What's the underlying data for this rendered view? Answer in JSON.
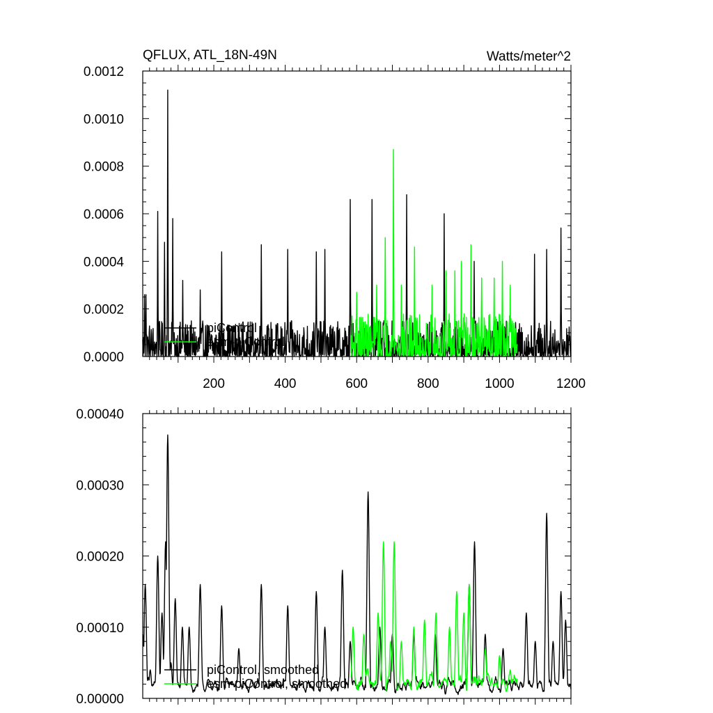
{
  "chart_data": [
    {
      "type": "line",
      "title_left": "QFLUX, ATL_18N-49N",
      "title_right": "Watts/meter^2",
      "xlim": [
        1,
        1200
      ],
      "ylim": [
        0,
        0.0012
      ],
      "xticks": [
        200,
        400,
        600,
        800,
        1000,
        1200
      ],
      "yticks": [
        0,
        0.0002,
        0.0004,
        0.0006,
        0.0008,
        0.001,
        0.0012
      ],
      "ytick_labels": [
        "0.0000",
        "0.0002",
        "0.0004",
        "0.0006",
        "0.0008",
        "0.0010",
        "0.0012"
      ],
      "grid": false,
      "legend_position": "bottom-left",
      "series": [
        {
          "name": "piControl",
          "color": "#000000",
          "x_start": 1,
          "x_end": 1200,
          "peaks": [
            [
              6,
              0.00026
            ],
            [
              10,
              0.00026
            ],
            [
              43,
              0.00061
            ],
            [
              62,
              0.00048
            ],
            [
              71,
              0.00112
            ],
            [
              85,
              0.00058
            ],
            [
              113,
              0.00032
            ],
            [
              162,
              0.00028
            ],
            [
              222,
              0.00044
            ],
            [
              333,
              0.00047
            ],
            [
              407,
              0.00045
            ],
            [
              487,
              0.00044
            ],
            [
              511,
              0.00045
            ],
            [
              582,
              0.00066
            ],
            [
              643,
              0.00066
            ],
            [
              740,
              0.00068
            ],
            [
              845,
              0.0006
            ],
            [
              929,
              0.0004
            ],
            [
              1098,
              0.00043
            ],
            [
              1132,
              0.00045
            ],
            [
              1172,
              0.00054
            ],
            [
              1197,
              8e-05
            ]
          ],
          "baseline_max": 0.00015
        },
        {
          "name": "esm-piControl",
          "color": "#00ff00",
          "x_start": 585,
          "x_end": 1050,
          "peaks": [
            [
              600,
              0.00027
            ],
            [
              656,
              0.0003
            ],
            [
              680,
              0.0005
            ],
            [
              703,
              0.00087
            ],
            [
              725,
              0.0003
            ],
            [
              762,
              0.00046
            ],
            [
              811,
              0.0003
            ],
            [
              850,
              0.00036
            ],
            [
              875,
              0.00036
            ],
            [
              893,
              0.0004
            ],
            [
              920,
              0.00047
            ],
            [
              950,
              0.00033
            ],
            [
              985,
              0.00033
            ],
            [
              1008,
              0.0004
            ],
            [
              1030,
              0.0003
            ]
          ],
          "baseline_max": 0.00018
        }
      ]
    },
    {
      "type": "line",
      "xlim": [
        1,
        1200
      ],
      "ylim": [
        0,
        0.0004
      ],
      "xticks": [
        200,
        400,
        600,
        800,
        1000,
        1200
      ],
      "yticks": [
        0,
        0.0001,
        0.0002,
        0.0003,
        0.0004
      ],
      "ytick_labels": [
        "0.00000",
        "0.00010",
        "0.00020",
        "0.00030",
        "0.00040"
      ],
      "grid": false,
      "legend_position": "bottom-left",
      "series": [
        {
          "name": "piControl, smoothed",
          "color": "#000000",
          "x_start": 1,
          "x_end": 1200,
          "peaks": [
            [
              1,
              9e-05
            ],
            [
              8,
              0.00016
            ],
            [
              22,
              4e-05
            ],
            [
              43,
              0.0002
            ],
            [
              55,
              0.00012
            ],
            [
              65,
              0.00022
            ],
            [
              71,
              0.00037
            ],
            [
              80,
              5e-05
            ],
            [
              92,
              0.00014
            ],
            [
              112,
              0.0001
            ],
            [
              131,
              0.0001
            ],
            [
              162,
              0.00016
            ],
            [
              222,
              0.00013
            ],
            [
              270,
              7e-05
            ],
            [
              333,
              0.00016
            ],
            [
              407,
              0.00013
            ],
            [
              487,
              0.00015
            ],
            [
              511,
              0.0001
            ],
            [
              560,
              0.00018
            ],
            [
              582,
              8e-05
            ],
            [
              632,
              0.00029
            ],
            [
              665,
              0.0001
            ],
            [
              700,
              9e-05
            ],
            [
              760,
              9e-05
            ],
            [
              820,
              9e-05
            ],
            [
              915,
              0.00016
            ],
            [
              930,
              0.00022
            ],
            [
              960,
              9e-05
            ],
            [
              1010,
              7e-05
            ],
            [
              1075,
              0.00012
            ],
            [
              1100,
              8e-05
            ],
            [
              1132,
              0.00026
            ],
            [
              1150,
              8e-05
            ],
            [
              1172,
              0.00015
            ],
            [
              1185,
              0.00011
            ],
            [
              1197,
              2e-05
            ]
          ],
          "baseline_max": 4e-05
        },
        {
          "name": "esm-piControl, smoothed",
          "color": "#00ff00",
          "x_start": 585,
          "x_end": 1050,
          "peaks": [
            [
              590,
              0.0001
            ],
            [
              620,
              9e-05
            ],
            [
              660,
              0.00012
            ],
            [
              675,
              0.00022
            ],
            [
              695,
              8e-05
            ],
            [
              705,
              0.00022
            ],
            [
              725,
              8e-05
            ],
            [
              760,
              0.0001
            ],
            [
              790,
              0.00011
            ],
            [
              822,
              0.00012
            ],
            [
              860,
              0.0001
            ],
            [
              880,
              0.00015
            ],
            [
              900,
              0.00012
            ],
            [
              915,
              0.00016
            ],
            [
              960,
              7e-05
            ],
            [
              1000,
              6e-05
            ],
            [
              1030,
              4e-05
            ]
          ],
          "baseline_max": 5e-05
        }
      ]
    }
  ]
}
